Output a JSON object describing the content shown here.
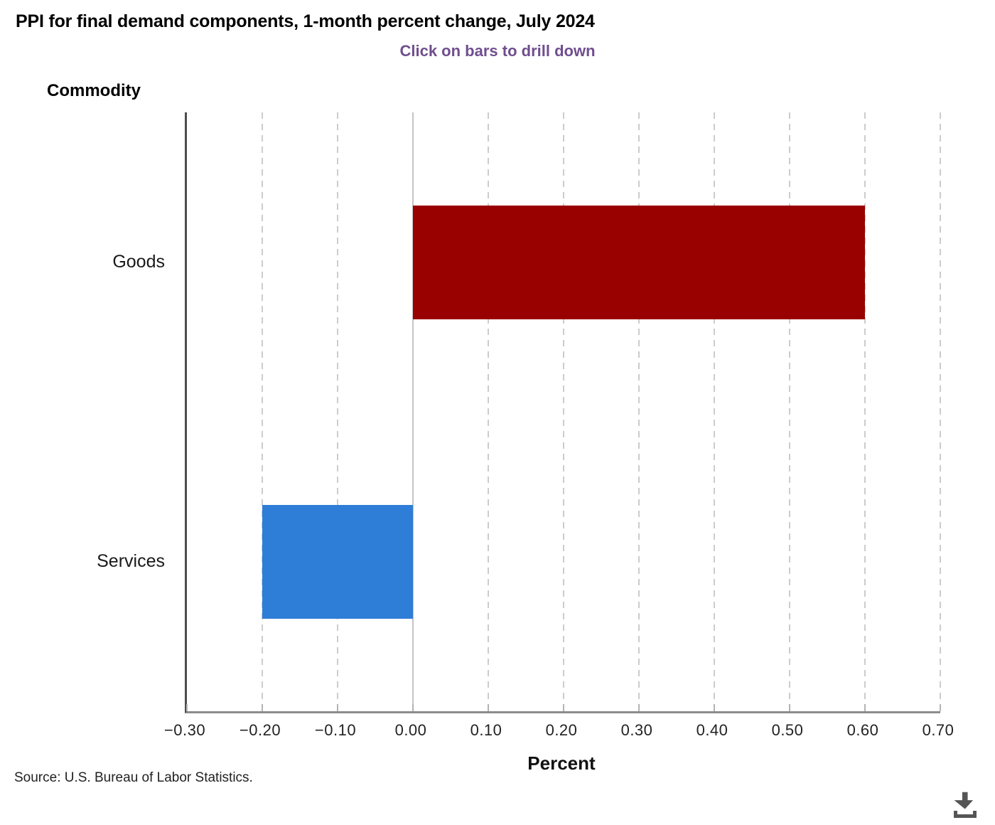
{
  "page": {
    "source": "Source: U.S. Bureau of Labor Statistics."
  },
  "chart_data": {
    "type": "bar",
    "orientation": "horizontal",
    "title": "PPI for final demand components, 1-month percent change, July 2024",
    "subtitle": "Click on bars to drill down",
    "ylabel": "Commodity",
    "xlabel": "Percent",
    "categories": [
      "Goods",
      "Services"
    ],
    "values": [
      0.6,
      -0.2
    ],
    "bar_colors": [
      "#990000",
      "#2E7DD6"
    ],
    "xlim": [
      -0.3,
      0.7
    ],
    "xticks": [
      -0.3,
      -0.2,
      -0.1,
      0.0,
      0.1,
      0.2,
      0.3,
      0.4,
      0.5,
      0.6,
      0.7
    ],
    "xtick_labels": [
      "−0.30",
      "−0.20",
      "−0.10",
      "0.00",
      "0.10",
      "0.20",
      "0.30",
      "0.40",
      "0.50",
      "0.60",
      "0.70"
    ],
    "grid": "vertical-dashed",
    "legend": "none"
  },
  "colors": {
    "subtitle": "#6F4E8E",
    "goods_bar": "#990000",
    "services_bar": "#2E7DD6",
    "icon": "#555555"
  }
}
